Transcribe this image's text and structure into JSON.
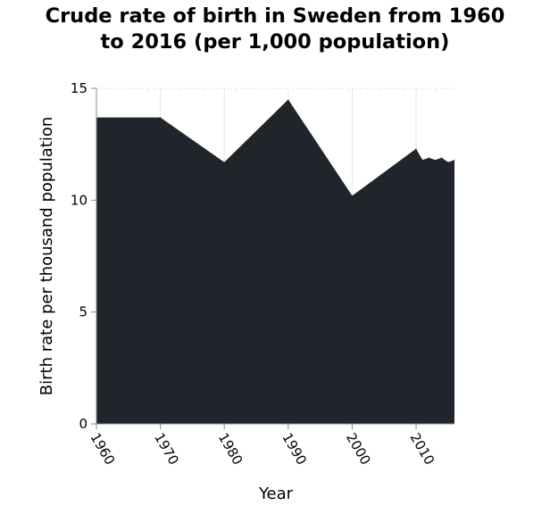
{
  "chart_data": {
    "type": "area",
    "title": "Crude rate of birth in Sweden from 1960\nto 2016 (per 1,000 population)",
    "xlabel": "Year",
    "ylabel": "Birth rate per thousand population",
    "xlim": [
      1960,
      2016
    ],
    "ylim": [
      0,
      15
    ],
    "x_ticks": [
      1960,
      1970,
      1980,
      1990,
      2000,
      2010
    ],
    "y_ticks": [
      0,
      5,
      10,
      15
    ],
    "grid": true,
    "legend": "none",
    "fill_color": "#1f252b",
    "series": [
      {
        "x": [
          1960,
          1970,
          1980,
          1990,
          2000,
          2010,
          2011,
          2012,
          2013,
          2014,
          2015,
          2016
        ],
        "values": [
          13.7,
          13.7,
          11.7,
          14.5,
          10.2,
          12.3,
          11.8,
          11.9,
          11.8,
          11.9,
          11.7,
          11.8
        ]
      }
    ]
  }
}
